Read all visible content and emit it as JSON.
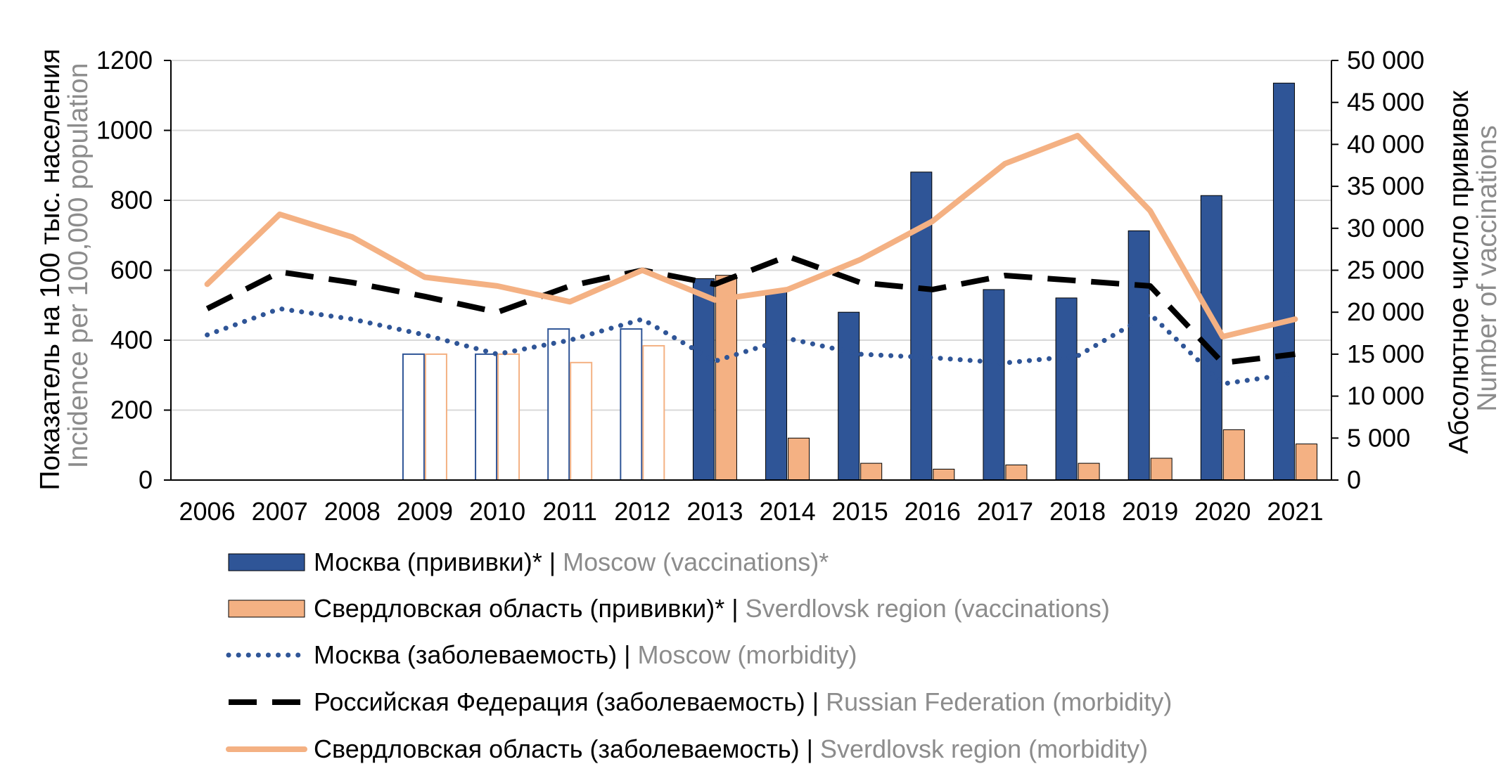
{
  "colors": {
    "moscow": "#2f5597",
    "sverdlovsk": "#f4b183",
    "russia": "#000000",
    "grid": "#d9d9d9",
    "secondary_text": "#8c8c8c"
  },
  "axes": {
    "left_title_ru": "Показатель на 100 тыс. населения",
    "left_title_en": "Incidence per 100,000 population",
    "right_title_ru": "Абсолютное число прививок",
    "right_title_en": "Number of vaccinations",
    "left_ticks": [
      "0",
      "200",
      "400",
      "600",
      "800",
      "1000",
      "1200"
    ],
    "right_ticks": [
      "0",
      "5 000",
      "10 000",
      "15 000",
      "20 000",
      "25 000",
      "30 000",
      "35 000",
      "40 000",
      "45 000",
      "50 000"
    ]
  },
  "legend": [
    {
      "ru": "Москва (прививки)* | ",
      "en": "Moscow (vaccinations)*"
    },
    {
      "ru": "Свердловская область (прививки)* | ",
      "en": "Sverdlovsk region (vaccinations)"
    },
    {
      "ru": "Москва (заболеваемость) | ",
      "en": "Moscow (morbidity)"
    },
    {
      "ru": "Российская Федерация (заболеваемость) | ",
      "en": "Russian Federation (morbidity)"
    },
    {
      "ru": "Свердловская область (заболеваемость) | ",
      "en": "Sverdlovsk region (morbidity)"
    }
  ],
  "chart_data": {
    "type": "bar",
    "categories": [
      "2006",
      "2007",
      "2008",
      "2009",
      "2010",
      "2011",
      "2012",
      "2013",
      "2014",
      "2015",
      "2016",
      "2017",
      "2018",
      "2019",
      "2020",
      "2021"
    ],
    "left_axis": {
      "ylim": [
        0,
        1200
      ],
      "step": 200
    },
    "right_axis": {
      "ylim": [
        0,
        50000
      ],
      "step": 5000
    },
    "grid": true,
    "legend_position": "bottom",
    "bar_series": [
      {
        "name": "Москва (прививки)* | Moscow (vaccinations)*",
        "axis": "right",
        "color": "#2f5597",
        "values": [
          null,
          null,
          null,
          15000,
          15000,
          18000,
          18000,
          24000,
          22500,
          20000,
          36700,
          22700,
          21700,
          29700,
          33900,
          47300
        ],
        "hollow": [
          false,
          false,
          false,
          true,
          true,
          true,
          true,
          false,
          false,
          false,
          false,
          false,
          false,
          false,
          false,
          false
        ]
      },
      {
        "name": "Свердловская область (прививки)* | Sverdlovsk region (vaccinations)",
        "axis": "right",
        "color": "#f4b183",
        "values": [
          null,
          null,
          null,
          15000,
          15000,
          14000,
          16000,
          24400,
          5000,
          2000,
          1300,
          1800,
          2000,
          2600,
          6000,
          4300
        ],
        "hollow": [
          false,
          false,
          false,
          true,
          true,
          true,
          true,
          false,
          false,
          false,
          false,
          false,
          false,
          false,
          false,
          false
        ]
      }
    ],
    "line_series": [
      {
        "name": "Москва (заболеваемость) | Moscow (morbidity)",
        "axis": "left",
        "style": "dotted",
        "color": "#2f5597",
        "values": [
          415,
          490,
          460,
          415,
          360,
          400,
          460,
          340,
          405,
          360,
          350,
          335,
          355,
          475,
          275,
          305
        ]
      },
      {
        "name": "Российская Федерация (заболеваемость) | Russian Federation (morbidity)",
        "axis": "left",
        "style": "dashed",
        "color": "#000000",
        "values": [
          490,
          595,
          565,
          525,
          480,
          555,
          600,
          560,
          640,
          565,
          545,
          585,
          570,
          555,
          335,
          360
        ]
      },
      {
        "name": "Свердловская область (заболеваемость) | Sverdlovsk region (morbidity)",
        "axis": "left",
        "style": "solid",
        "color": "#f4b183",
        "values": [
          560,
          760,
          695,
          580,
          555,
          510,
          600,
          515,
          545,
          630,
          740,
          905,
          985,
          770,
          410,
          460
        ]
      }
    ]
  }
}
